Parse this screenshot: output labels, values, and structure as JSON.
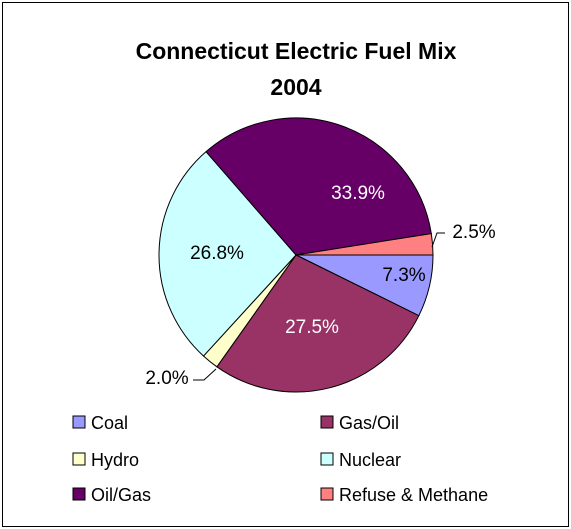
{
  "chart_data": {
    "type": "pie",
    "title_lines": [
      "Connecticut Electric Fuel Mix",
      "2004"
    ],
    "start_angle_deg": 0,
    "direction": "clockwise",
    "slices": [
      {
        "label": "Coal",
        "value": 7.3,
        "display": "7.3%",
        "color": "#9999ff",
        "label_position": "inside",
        "label_color": "#000000"
      },
      {
        "label": "Gas/Oil",
        "value": 27.5,
        "display": "27.5%",
        "color": "#993366",
        "label_position": "inside",
        "label_color": "#ffffff"
      },
      {
        "label": "Hydro",
        "value": 2.0,
        "display": "2.0%",
        "color": "#ffffcc",
        "label_position": "outside",
        "label_color": "#000000"
      },
      {
        "label": "Nuclear",
        "value": 26.8,
        "display": "26.8%",
        "color": "#ccffff",
        "label_position": "inside",
        "label_color": "#000000"
      },
      {
        "label": "Oil/Gas",
        "value": 33.9,
        "display": "33.9%",
        "color": "#660066",
        "label_position": "inside",
        "label_color": "#ffffff"
      },
      {
        "label": "Refuse & Methane",
        "value": 2.5,
        "display": "2.5%",
        "color": "#ff8080",
        "label_position": "outside",
        "label_color": "#000000"
      }
    ],
    "legend": {
      "placement": "bottom",
      "columns": 2,
      "items": [
        "Coal",
        "Gas/Oil",
        "Hydro",
        "Nuclear",
        "Oil/Gas",
        "Refuse & Methane"
      ]
    }
  }
}
